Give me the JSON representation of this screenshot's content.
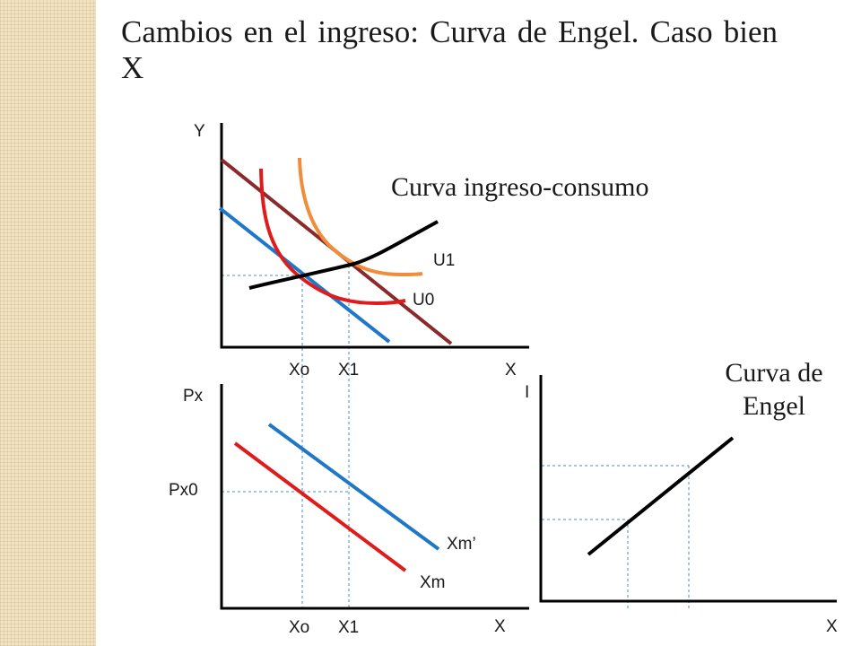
{
  "title": "Cambios en el ingreso: Curva de Engel. Caso bien X",
  "colors": {
    "blue": "#1f77c8",
    "red": "#e01b1b",
    "orange": "#f08c3a",
    "maroon": "#8b2a2a",
    "black": "#000000",
    "guide": "#4a8fbf",
    "side_stripe": "#f1e3c2"
  },
  "top_panel": {
    "y_axis_label": "Y",
    "x_axis_label": "X",
    "curve_label_u1": "U1",
    "curve_label_u0": "U0",
    "icc_label": "Curva ingreso-consumo",
    "x0_label": "Xo",
    "x1_label": "X1"
  },
  "bottom_left_panel": {
    "y_axis_label": "Px",
    "px0_label": "Px0",
    "x_axis_label": "X",
    "demand_shifted_label": "Xm’",
    "demand_label": "Xm",
    "x0_label": "Xo",
    "x1_label": "X1"
  },
  "bottom_right_panel": {
    "y_axis_label": "I",
    "x_axis_label": "X",
    "engel_label_line1": "Curva de",
    "engel_label_line2": "Engel"
  }
}
